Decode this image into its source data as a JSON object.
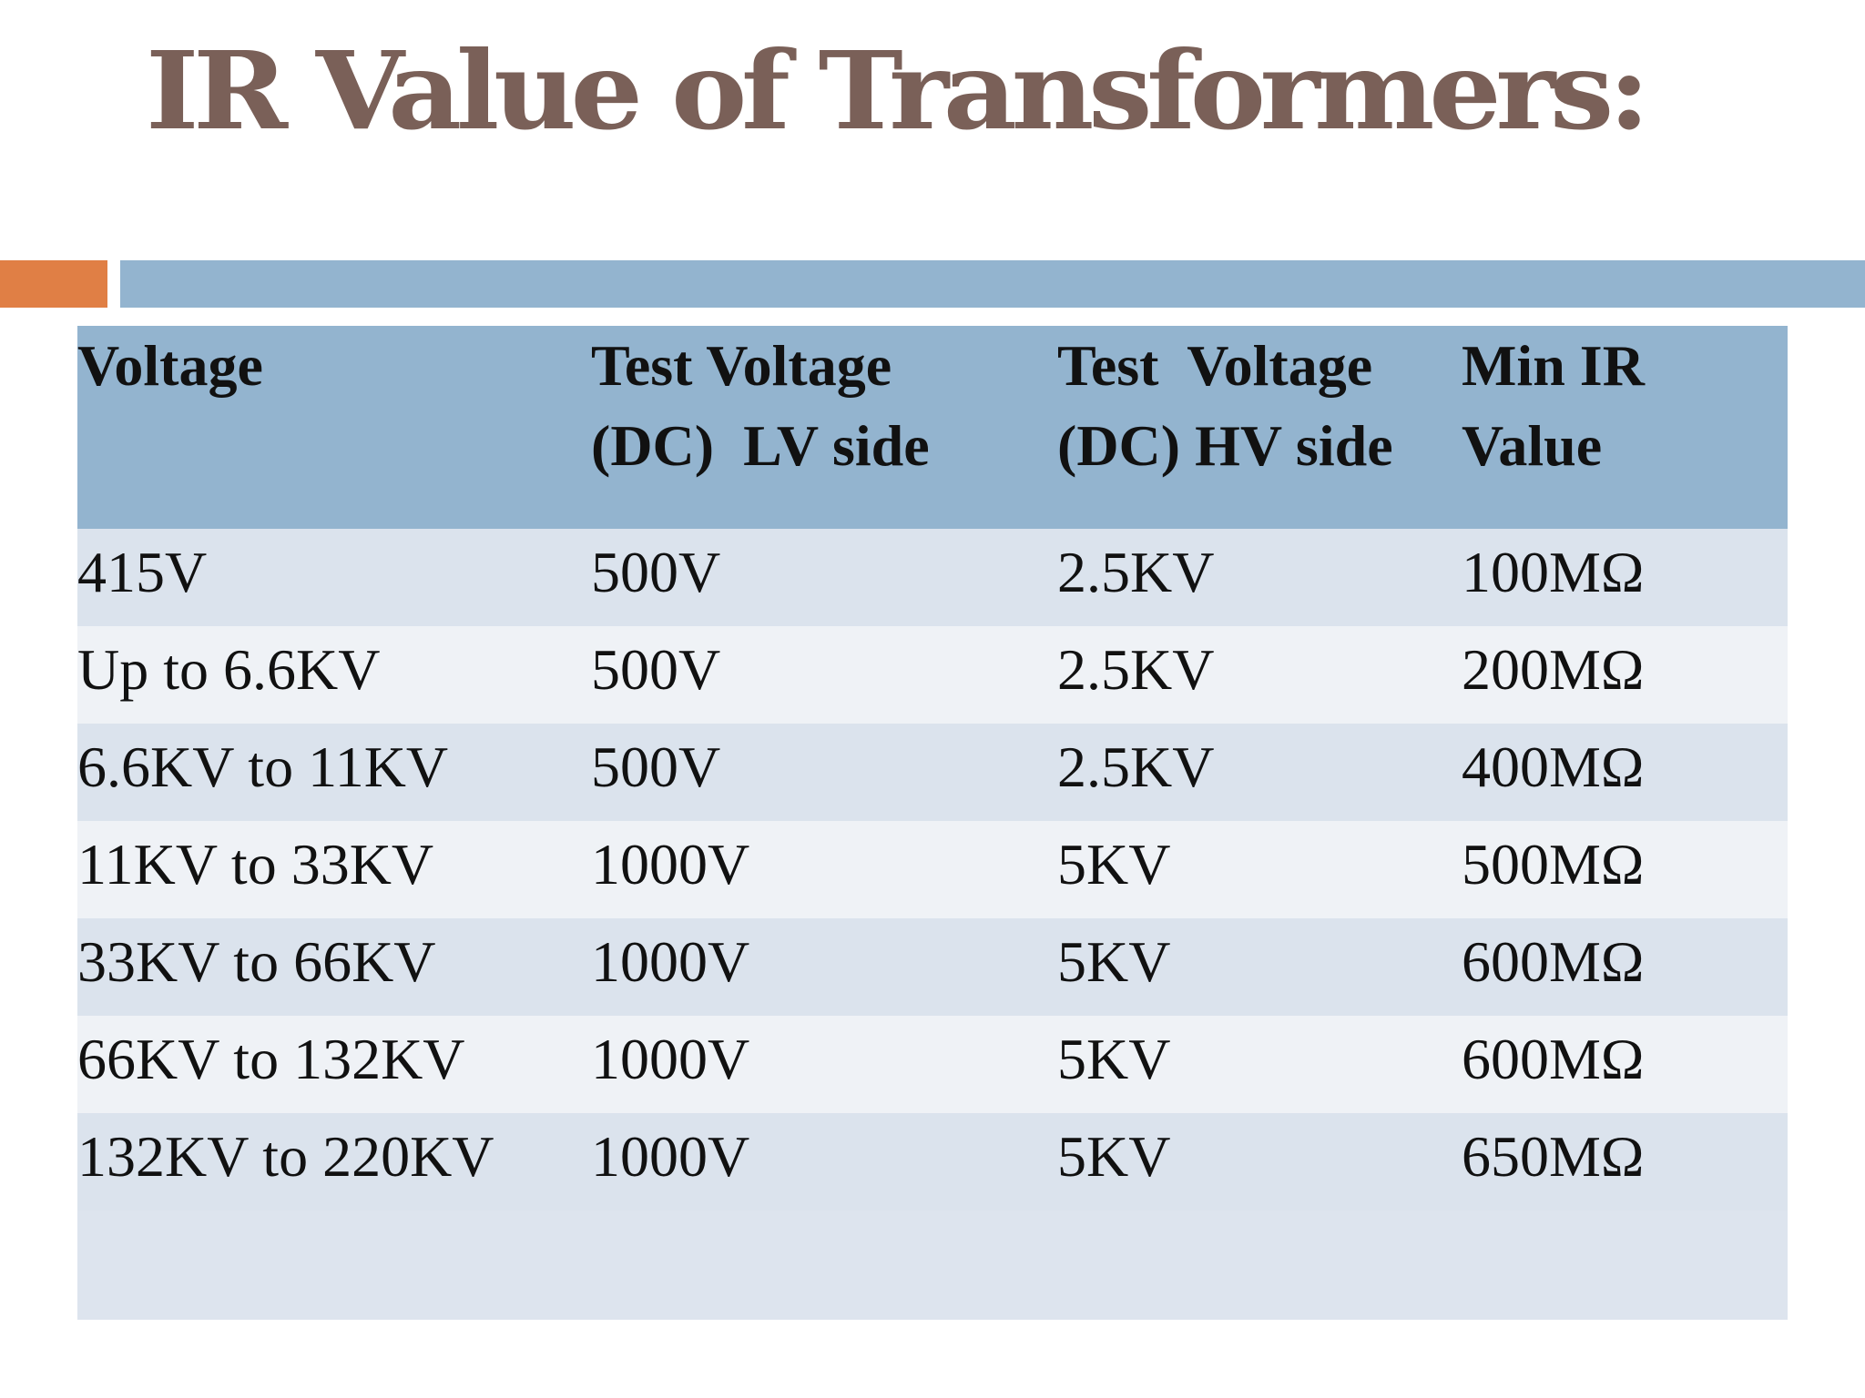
{
  "title": "IR Value of Transformers:",
  "colors": {
    "title": "#7a6058",
    "accent_orange": "#e07f45",
    "accent_blue": "#93b4cf",
    "header_bg": "#93b4cf",
    "row_odd": "#dbe3ed",
    "row_even": "#eff2f6"
  },
  "table": {
    "headers": [
      [
        "Voltage"
      ],
      [
        "Test Voltage",
        "(DC)  LV side"
      ],
      [
        "Test  Voltage",
        "(DC) HV side"
      ],
      [
        "Min IR",
        "Value"
      ]
    ],
    "rows": [
      [
        "415V",
        "500V",
        "2.5KV",
        "100MΩ"
      ],
      [
        "Up to 6.6KV",
        "500V",
        "2.5KV",
        "200MΩ"
      ],
      [
        "6.6KV to 11KV",
        "500V",
        "2.5KV",
        "400MΩ"
      ],
      [
        "11KV to 33KV",
        "1000V",
        "5KV",
        "500MΩ"
      ],
      [
        "33KV to 66KV",
        "1000V",
        "5KV",
        "600MΩ"
      ],
      [
        "66KV to 132KV",
        "1000V",
        "5KV",
        "600MΩ"
      ],
      [
        "132KV to 220KV",
        "1000V",
        "5KV",
        "650MΩ"
      ]
    ]
  }
}
